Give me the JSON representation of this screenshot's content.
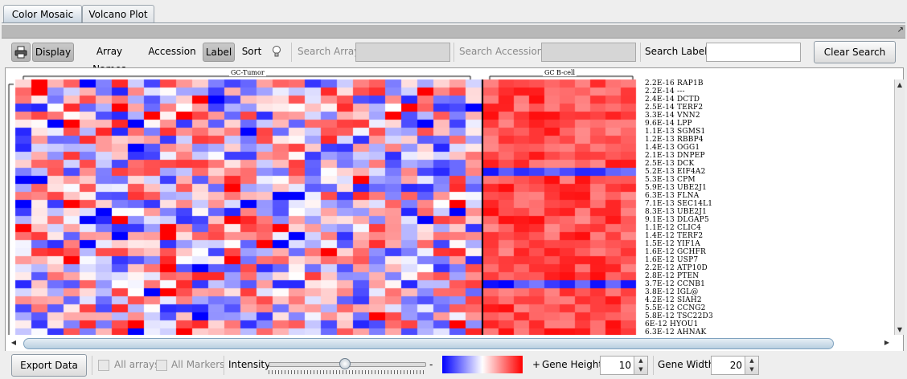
{
  "tabs": [
    {
      "label": "Color Mosaic",
      "active": true
    },
    {
      "label": "Volcano Plot",
      "active": false
    }
  ],
  "toolbar": {
    "display": "Display",
    "array_names": "Array Names",
    "accession": "Accession",
    "label": "Label",
    "sort": "Sort",
    "search_array_label": "Search Array",
    "search_accession_label": "Search Accession",
    "search_label_label": "Search Label",
    "search_label_value": "",
    "clear_search": "Clear Search",
    "resize_glyph": "↗"
  },
  "heatmap": {
    "cluster_left": "GC-Tumor",
    "cluster_right": "GC B-cell",
    "genes": [
      {
        "p": "2.2E-16",
        "name": "RAP1B"
      },
      {
        "p": "2.2E-14",
        "name": "---"
      },
      {
        "p": "2.4E-14",
        "name": "DCTD"
      },
      {
        "p": "2.5E-14",
        "name": "TERF2"
      },
      {
        "p": "3.3E-14",
        "name": "VNN2"
      },
      {
        "p": "9.6E-14",
        "name": "LPP"
      },
      {
        "p": "1.1E-13",
        "name": "SGMS1"
      },
      {
        "p": "1.2E-13",
        "name": "RBBP4"
      },
      {
        "p": "1.4E-13",
        "name": "OGG1"
      },
      {
        "p": "2.1E-13",
        "name": "DNPEP"
      },
      {
        "p": "2.5E-13",
        "name": "DCK"
      },
      {
        "p": "5.2E-13",
        "name": "EIF4A2"
      },
      {
        "p": "5.3E-13",
        "name": "CPM"
      },
      {
        "p": "5.9E-13",
        "name": "UBE2J1"
      },
      {
        "p": "6.3E-13",
        "name": "FLNA"
      },
      {
        "p": "7.1E-13",
        "name": "SEC14L1"
      },
      {
        "p": "8.3E-13",
        "name": "UBE2J1"
      },
      {
        "p": "9.1E-13",
        "name": "DLGAP5"
      },
      {
        "p": "1.1E-12",
        "name": "CLIC4"
      },
      {
        "p": "1.4E-12",
        "name": "TERF2"
      },
      {
        "p": "1.5E-12",
        "name": "YIF1A"
      },
      {
        "p": "1.6E-12",
        "name": "GCHFR"
      },
      {
        "p": "1.6E-12",
        "name": "USP7"
      },
      {
        "p": "2.2E-12",
        "name": "ATP10D"
      },
      {
        "p": "2.8E-12",
        "name": "PTEN"
      },
      {
        "p": "3.7E-12",
        "name": "CCNB1"
      },
      {
        "p": "3.8E-12",
        "name": "IGL@"
      },
      {
        "p": "4.2E-12",
        "name": "SIAH2"
      },
      {
        "p": "5.5E-12",
        "name": "CCNG2"
      },
      {
        "p": "5.8E-12",
        "name": "TSC22D3"
      },
      {
        "p": "6E-12",
        "name": "HYOU1"
      },
      {
        "p": "6.3E-12",
        "name": "AHNAK"
      }
    ]
  },
  "bottom": {
    "export_data": "Export Data",
    "all_arrays": "All arrays",
    "all_markers": "All Markers",
    "intensity": "Intensity",
    "minus": "-",
    "plus": "+",
    "gene_height_label": "Gene Height",
    "gene_height": "10",
    "gene_width_label": "Gene Width",
    "gene_width": "20",
    "spin_up": "▲",
    "spin_down": "▼"
  },
  "colors": {
    "low": "#0000ff",
    "mid": "#ffffff",
    "high": "#ff0000"
  }
}
